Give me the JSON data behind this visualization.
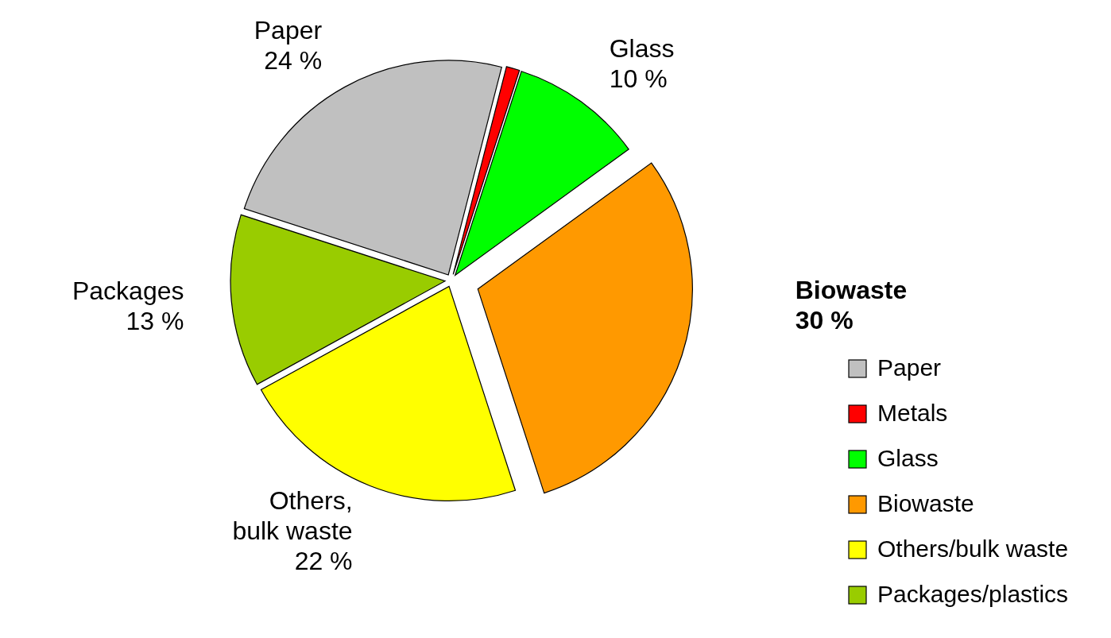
{
  "chart_data": {
    "type": "pie",
    "categories": [
      "Paper",
      "Metals",
      "Glass",
      "Biowaste",
      "Others/bulk waste",
      "Packages/plastics"
    ],
    "values": [
      24,
      1,
      10,
      30,
      22,
      13
    ],
    "colors": [
      "#c0c0c0",
      "#ff0000",
      "#00ff00",
      "#ff9900",
      "#ffff00",
      "#99cc00"
    ],
    "value_labels": [
      "Paper\n24 %",
      null,
      "Glass\n10 %",
      "Biowaste\n30 %",
      "Others,\nbulk waste\n22 %",
      "Packages\n13 %"
    ],
    "legend": "bottom right"
  }
}
